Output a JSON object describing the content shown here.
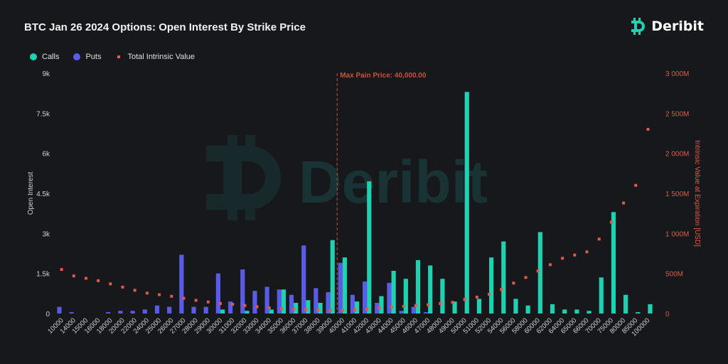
{
  "title": "BTC Jan 26 2024 Options: Open Interest By Strike Price",
  "brand": {
    "name": "Deribit",
    "logo_icon": "deribit-logo-icon",
    "watermark_text": "Deribit"
  },
  "colors": {
    "calls": "#1fd1b0",
    "puts": "#5b5ce6",
    "intrinsic": "#e05a47",
    "maxpain": "#c9503f"
  },
  "chart_data": {
    "type": "bar",
    "title": "BTC Jan 26 2024 Options: Open Interest By Strike Price",
    "legend": {
      "position": "top-left",
      "entries": [
        "Calls",
        "Puts",
        "Total Intrinsic Value"
      ]
    },
    "categories": [
      "10000",
      "14000",
      "15000",
      "16000",
      "18000",
      "20000",
      "22000",
      "24000",
      "25000",
      "26000",
      "27000",
      "28000",
      "29000",
      "30000",
      "31000",
      "32000",
      "33000",
      "34000",
      "35000",
      "36000",
      "37000",
      "38000",
      "39000",
      "40000",
      "41000",
      "42000",
      "43000",
      "44000",
      "45000",
      "46000",
      "47000",
      "48000",
      "49000",
      "50000",
      "51000",
      "52000",
      "54000",
      "56000",
      "58000",
      "60000",
      "62000",
      "64000",
      "65000",
      "66000",
      "70000",
      "75000",
      "80000",
      "85000",
      "100000"
    ],
    "series": [
      {
        "name": "Calls",
        "axis": "left",
        "kind": "bar",
        "values": [
          0,
          0,
          0,
          0,
          0,
          0,
          0,
          0,
          0,
          0,
          0,
          0,
          0,
          150,
          0,
          100,
          0,
          150,
          900,
          400,
          500,
          400,
          2750,
          2100,
          450,
          4950,
          650,
          1600,
          1300,
          2000,
          1800,
          1300,
          450,
          8300,
          550,
          2100,
          2700,
          550,
          300,
          3050,
          350,
          150,
          150,
          100,
          1350,
          3800,
          700,
          50,
          350
        ]
      },
      {
        "name": "Puts",
        "axis": "left",
        "kind": "bar",
        "values": [
          250,
          50,
          0,
          0,
          50,
          100,
          100,
          150,
          300,
          250,
          2200,
          250,
          250,
          1500,
          450,
          1650,
          850,
          1000,
          900,
          700,
          2550,
          950,
          800,
          1900,
          700,
          1200,
          400,
          1150,
          100,
          250,
          50,
          0,
          0,
          0,
          0,
          0,
          0,
          0,
          0,
          0,
          0,
          0,
          0,
          0,
          0,
          0,
          0,
          0,
          0
        ]
      },
      {
        "name": "Total Intrinsic Value",
        "axis": "right",
        "kind": "scatter",
        "values": [
          550,
          470,
          440,
          410,
          370,
          330,
          290,
          255,
          235,
          215,
          190,
          165,
          145,
          125,
          115,
          100,
          85,
          70,
          60,
          55,
          50,
          45,
          40,
          40,
          45,
          55,
          70,
          80,
          90,
          100,
          110,
          125,
          140,
          175,
          205,
          240,
          300,
          380,
          450,
          530,
          610,
          690,
          730,
          770,
          930,
          1140,
          1380,
          1600,
          2300
        ]
      }
    ],
    "ylabel": "Open Interest",
    "ylim": [
      0,
      9000
    ],
    "yticks": [
      "0",
      "1.5k",
      "3k",
      "4.5k",
      "6k",
      "7.5k",
      "9k"
    ],
    "y2label": "Intrinsic Value at Expiration [USD]",
    "y2lim": [
      0,
      3000
    ],
    "y2ticks": [
      "0",
      "500M",
      "1 000M",
      "1 500M",
      "2 000M",
      "2 500M",
      "3 000M"
    ],
    "annotation": {
      "label": "Max Pain Price: 40,000.00",
      "category": "40000"
    },
    "grid": false
  }
}
